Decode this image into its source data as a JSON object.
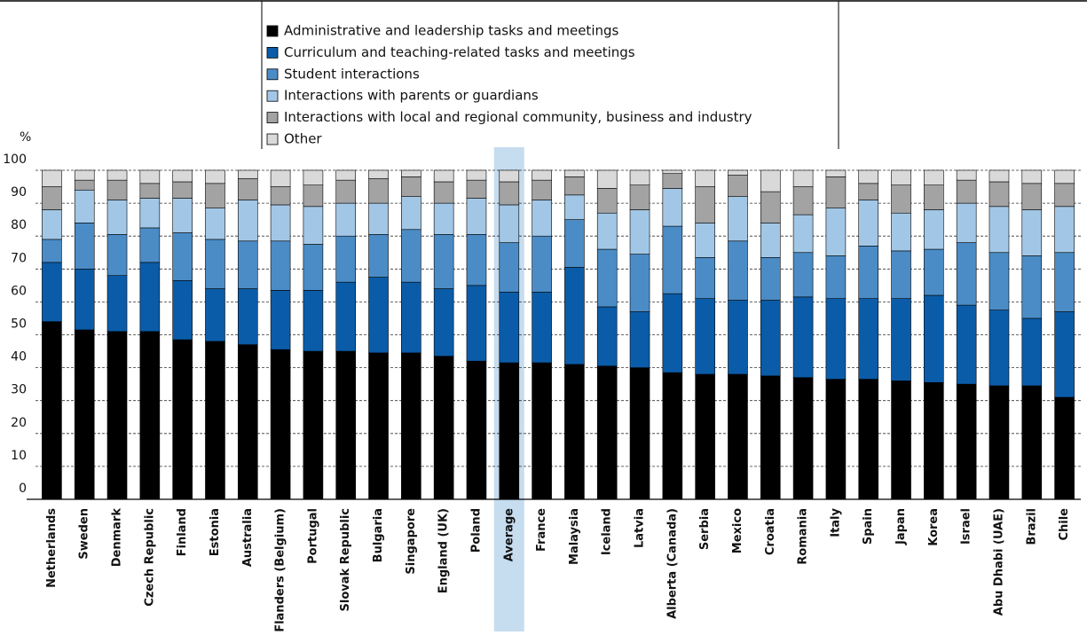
{
  "chart_data": {
    "type": "stacked_bar",
    "y_label": "%",
    "categories": [
      "Netherlands",
      "Sweden",
      "Denmark",
      "Czech Republic",
      "Finland",
      "Estonia",
      "Australia",
      "Flanders (Belgium)",
      "Portugal",
      "Slovak Republic",
      "Bulgaria",
      "Singapore",
      "England (UK)",
      "Poland",
      "Average",
      "France",
      "Malaysia",
      "Iceland",
      "Latvia",
      "Alberta (Canada)",
      "Serbia",
      "Mexico",
      "Croatia",
      "Romania",
      "Italy",
      "Spain",
      "Japan",
      "Korea",
      "Israel",
      "Abu Dhabi (UAE)",
      "Brazil",
      "Chile"
    ],
    "series": [
      {
        "name": "Administrative and leadership tasks and meetings",
        "color": "#000000",
        "values": [
          54,
          51.5,
          51,
          51,
          48.5,
          48,
          47,
          45.5,
          45,
          45,
          44.5,
          44.5,
          43.5,
          42,
          41.5,
          41.5,
          41,
          40.5,
          40,
          38.5,
          38,
          38,
          37.5,
          37,
          36.5,
          36.5,
          36,
          35.5,
          35,
          34.5,
          34.5,
          31
        ]
      },
      {
        "name": "Curriculum and teaching-related tasks and meetings",
        "color": "#0b5ca8",
        "values": [
          18,
          18.5,
          17,
          21,
          18,
          16,
          17,
          18,
          18.5,
          21,
          23,
          21.5,
          20.5,
          23,
          21.5,
          21.5,
          29.5,
          18,
          17,
          24,
          23,
          22.5,
          23,
          24.5,
          24.5,
          24.5,
          25,
          26.5,
          24,
          23,
          20.5,
          26
        ]
      },
      {
        "name": "Student interactions",
        "color": "#4b8cc6",
        "values": [
          7,
          14,
          12.5,
          10.5,
          14.5,
          15,
          14.5,
          15,
          14,
          14,
          13,
          16,
          16.5,
          15.5,
          15,
          17,
          14.5,
          17.5,
          17.5,
          20.5,
          12.5,
          18,
          13,
          13.5,
          13,
          16,
          14.5,
          14,
          19,
          17.5,
          19,
          18
        ]
      },
      {
        "name": "Interactions with parents or guardians",
        "color": "#a2c7e6",
        "values": [
          9,
          10,
          10.5,
          9,
          10.5,
          9.5,
          12.5,
          11,
          11.5,
          10,
          9.5,
          10,
          9.5,
          11,
          11.5,
          11,
          7.5,
          11,
          13.5,
          11.5,
          10.5,
          13.5,
          10.5,
          11.5,
          14.5,
          14,
          11.5,
          12,
          12,
          14,
          14,
          14
        ]
      },
      {
        "name": "Interactions with local and regional community, business and industry",
        "color": "#a3a3a3",
        "values": [
          7,
          3,
          6,
          4.5,
          5,
          7.5,
          6.5,
          5.5,
          6.5,
          7,
          7.5,
          6,
          6.5,
          5.5,
          7,
          6,
          5.5,
          7.5,
          7.5,
          4.5,
          11,
          6.5,
          9.5,
          8.5,
          9.5,
          5,
          8.5,
          7.5,
          7,
          7.5,
          8,
          7
        ]
      },
      {
        "name": "Other",
        "color": "#d9d9d9",
        "values": [
          5,
          3,
          3,
          4,
          3.5,
          4,
          2.5,
          5,
          4.5,
          3,
          2.5,
          2,
          3.5,
          3,
          3.5,
          3,
          2,
          5.5,
          4.5,
          1,
          5,
          1.5,
          6.5,
          5,
          2,
          4,
          4.5,
          4.5,
          3,
          3.5,
          4,
          4
        ]
      }
    ],
    "ylim": [
      0,
      100
    ],
    "yticks": [
      0,
      10,
      20,
      30,
      40,
      50,
      60,
      70,
      80,
      90,
      100
    ],
    "grid": true,
    "highlight": {
      "category": "Average",
      "color": "#c6dcef"
    }
  }
}
